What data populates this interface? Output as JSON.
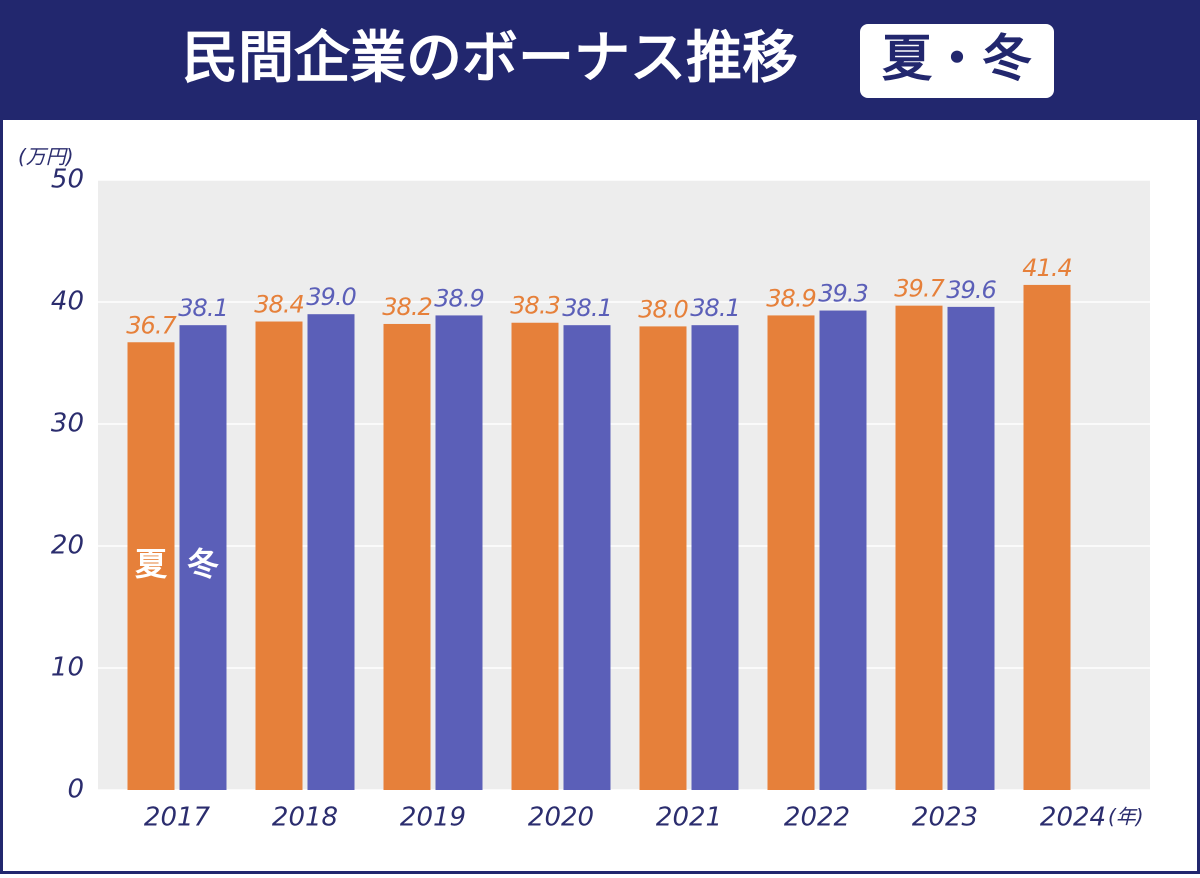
{
  "chart_data": {
    "type": "bar",
    "title": "民間企業のボーナス推移",
    "badge": "夏・冬",
    "y_unit": "(万円)",
    "x_unit": "(年)",
    "categories": [
      "2017",
      "2018",
      "2019",
      "2020",
      "2021",
      "2022",
      "2023",
      "2024"
    ],
    "series": [
      {
        "name": "夏",
        "color": "#e6803a",
        "values": [
          36.7,
          38.4,
          38.2,
          38.3,
          38.0,
          38.9,
          39.7,
          41.4
        ],
        "value_labels": [
          "36.7",
          "38.4",
          "38.2",
          "38.3",
          "38.0",
          "38.9",
          "39.7",
          "41.4"
        ]
      },
      {
        "name": "冬",
        "color": "#5b5fb8",
        "values": [
          38.1,
          39.0,
          38.9,
          38.1,
          38.1,
          39.3,
          39.6,
          null
        ],
        "value_labels": [
          "38.1",
          "39.0",
          "38.9",
          "38.1",
          "38.1",
          "39.3",
          "39.6",
          null
        ]
      }
    ],
    "ylim": [
      0,
      50
    ],
    "yticks": [
      0,
      10,
      20,
      30,
      40,
      50
    ],
    "grid": true
  }
}
